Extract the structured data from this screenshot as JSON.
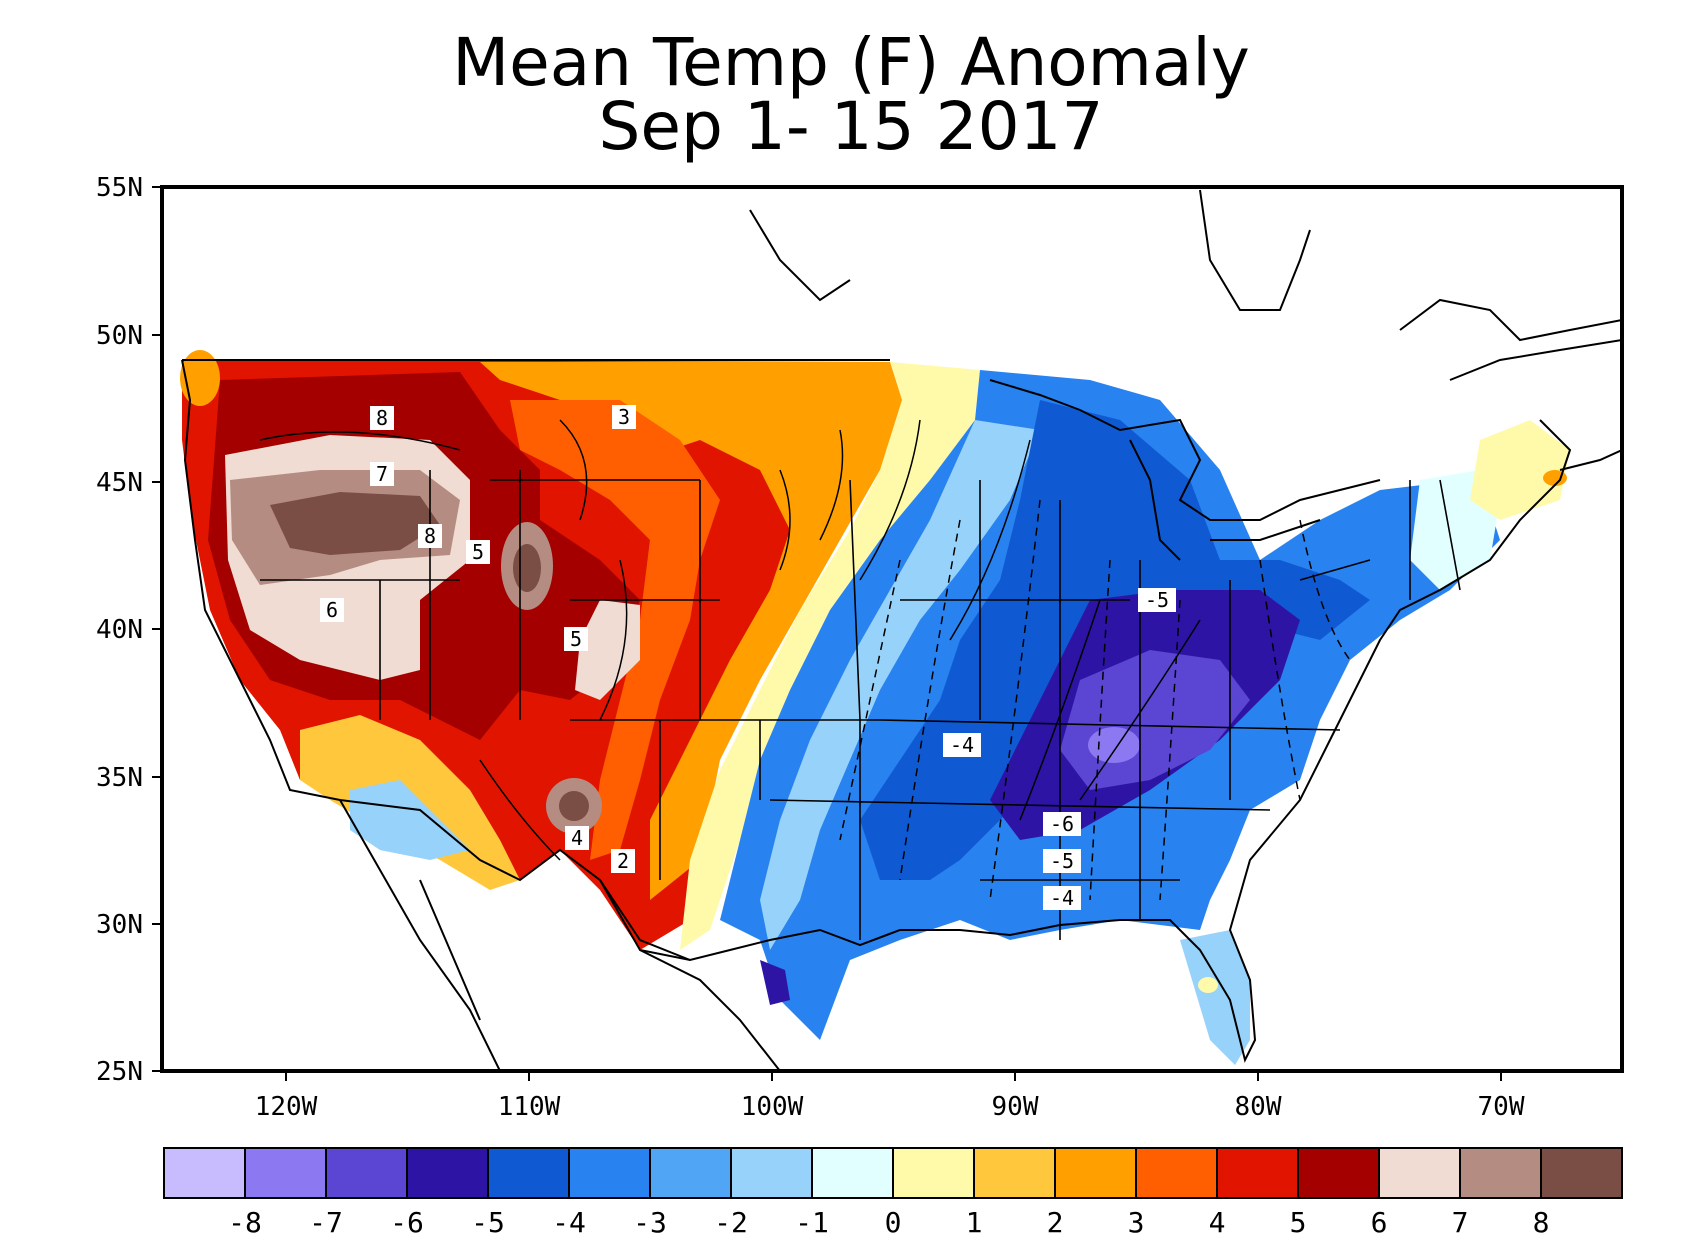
{
  "title": "Mean Temp (F) Anomaly",
  "subtitle": "Sep 1- 15 2017",
  "lat_labels": [
    "55N",
    "50N",
    "45N",
    "40N",
    "35N",
    "30N",
    "25N"
  ],
  "lon_labels": [
    "120W",
    "110W",
    "100W",
    "90W",
    "80W",
    "70W"
  ],
  "contour_labels": [
    "8",
    "7",
    "8",
    "6",
    "5",
    "5",
    "3",
    "-5",
    "-4",
    "-6",
    "-5",
    "-4",
    "4",
    "2"
  ],
  "legend": {
    "colors": [
      "#c8bcff",
      "#8c78f0",
      "#5a46d2",
      "#2d14a5",
      "#0f5ad2",
      "#2882f0",
      "#50a5f5",
      "#96d2fa",
      "#e1ffff",
      "#fffaaa",
      "#ffc83c",
      "#ffa000",
      "#ff5f00",
      "#e11400",
      "#a50000",
      "#f0dcd2",
      "#b48c82",
      "#7a4e44"
    ],
    "labels": [
      "-8",
      "-7",
      "-6",
      "-5",
      "-4",
      "-3",
      "-2",
      "-1",
      "0",
      "1",
      "2",
      "3",
      "4",
      "5",
      "6",
      "7",
      "8"
    ]
  }
}
